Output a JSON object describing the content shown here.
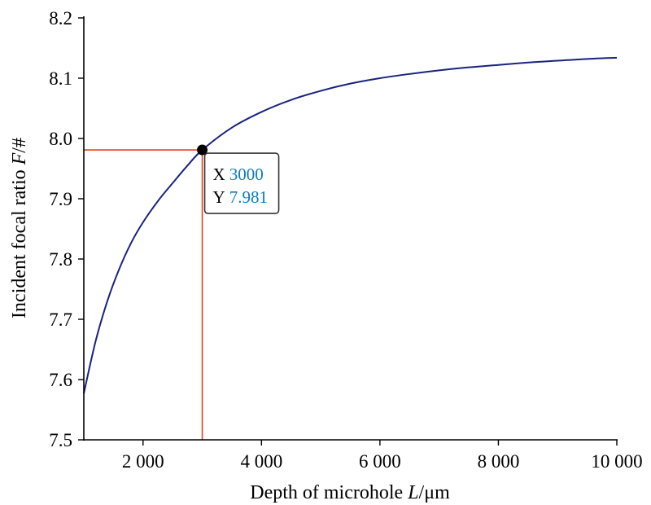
{
  "chart_data": {
    "type": "line",
    "xlabel": {
      "prefix": "Depth of microhole ",
      "var": "L",
      "suffix": "/μm"
    },
    "ylabel": {
      "prefix": "Incident focal ratio ",
      "var": "F",
      "suffix": "/#"
    },
    "xlim": [
      1000,
      10000
    ],
    "ylim": [
      7.5,
      8.2
    ],
    "x_ticks": [
      {
        "value": 2000,
        "label": "2 000"
      },
      {
        "value": 4000,
        "label": "4 000"
      },
      {
        "value": 6000,
        "label": "6 000"
      },
      {
        "value": 8000,
        "label": "8 000"
      },
      {
        "value": 10000,
        "label": "10 000"
      }
    ],
    "y_ticks": [
      {
        "value": 7.5,
        "label": "7.5"
      },
      {
        "value": 7.6,
        "label": "7.6"
      },
      {
        "value": 7.7,
        "label": "7.7"
      },
      {
        "value": 7.8,
        "label": "7.8"
      },
      {
        "value": 7.9,
        "label": "7.9"
      },
      {
        "value": 8.0,
        "label": "8.0"
      },
      {
        "value": 8.1,
        "label": "8.1"
      },
      {
        "value": 8.2,
        "label": "8.2"
      }
    ],
    "grid": false,
    "series": [
      {
        "color": "#1a237e",
        "x": [
          1000,
          1200,
          1400,
          1600,
          1800,
          2000,
          2250,
          2500,
          2750,
          3000,
          3500,
          4000,
          4500,
          5000,
          5500,
          6000,
          6500,
          7000,
          7500,
          8000,
          8500,
          9000,
          9500,
          10000
        ],
        "y": [
          7.577,
          7.664,
          7.731,
          7.784,
          7.827,
          7.861,
          7.896,
          7.926,
          7.955,
          7.981,
          8.018,
          8.044,
          8.064,
          8.079,
          8.091,
          8.1,
          8.107,
          8.113,
          8.118,
          8.122,
          8.126,
          8.129,
          8.132,
          8.134
        ]
      }
    ],
    "marker": {
      "x": 3000,
      "y": 7.981,
      "color": "#000000",
      "guide_color": "#e8401c",
      "tooltip": {
        "x_key": "X",
        "x_value": "3000",
        "y_key": "Y",
        "y_value": "7.981",
        "value_color": "#0a7cc0"
      }
    }
  }
}
